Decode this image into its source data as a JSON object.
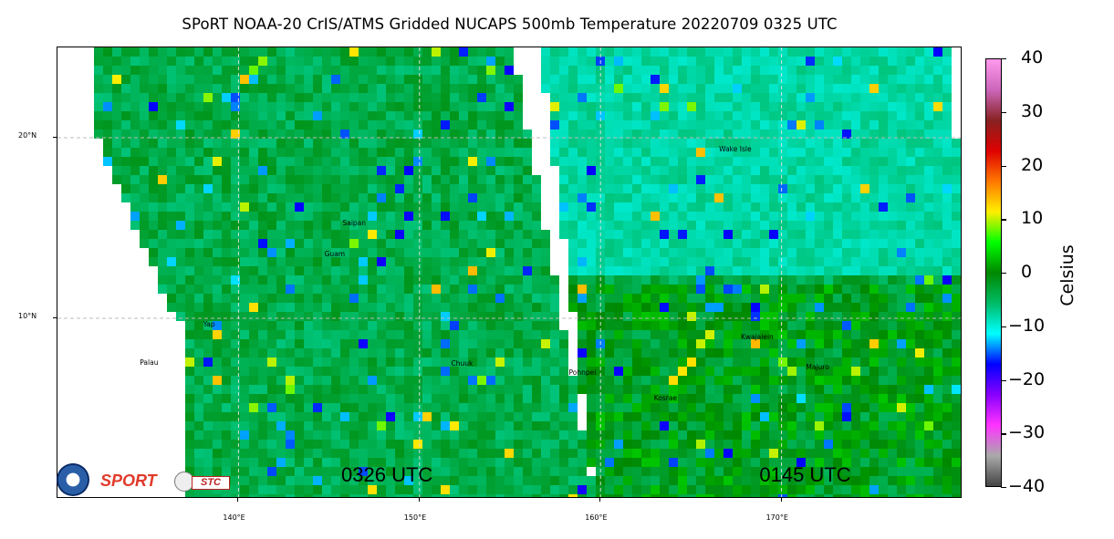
{
  "title": "SPoRT NOAA-20 CrIS/ATMS Gridded NUCAPS 500mb Temperature 20220709 0325 UTC",
  "map": {
    "lon_min": 130,
    "lon_max": 180,
    "lat_min": 0,
    "lat_max": 25,
    "lat_lines": [
      {
        "lat": 10,
        "label": "10°N"
      },
      {
        "lat": 20,
        "label": "20°N"
      }
    ],
    "lon_lines": [
      {
        "lon": 140,
        "label": "140°E"
      },
      {
        "lon": 150,
        "label": "150°E"
      },
      {
        "lon": 160,
        "label": "160°E"
      },
      {
        "lon": 170,
        "label": "170°E"
      }
    ],
    "pass_labels": [
      {
        "text": "0326 UTC",
        "lon": 148.4,
        "lat": 1.1
      },
      {
        "text": "0145 UTC",
        "lon": 171.5,
        "lat": 1.1
      }
    ],
    "places": [
      {
        "name": "Wake Isle",
        "lon": 166.6,
        "lat": 19.3
      },
      {
        "name": "Saipan",
        "lon": 145.8,
        "lat": 15.2
      },
      {
        "name": "Guam",
        "lon": 144.8,
        "lat": 13.5
      },
      {
        "name": "Yap",
        "lon": 138.1,
        "lat": 9.6
      },
      {
        "name": "Palau",
        "lon": 134.6,
        "lat": 7.5
      },
      {
        "name": "Chuuk",
        "lon": 151.8,
        "lat": 7.4
      },
      {
        "name": "Pohnpei",
        "lon": 158.3,
        "lat": 6.9
      },
      {
        "name": "Kwajalein",
        "lon": 167.8,
        "lat": 8.9
      },
      {
        "name": "Majuro",
        "lon": 171.4,
        "lat": 7.2
      },
      {
        "name": "Kosrae",
        "lon": 163.0,
        "lat": 5.5
      }
    ]
  },
  "colorbar": {
    "title": "Celsius",
    "min": -40,
    "max": 40,
    "ticks": [
      "40",
      "30",
      "20",
      "10",
      "0",
      "−10",
      "−20",
      "−30",
      "−40"
    ],
    "stops": [
      "#ff99ee",
      "#cc66bb",
      "#882222",
      "#dd0000",
      "#ff7700",
      "#ffee00",
      "#00ff00",
      "#008800",
      "#00bb66",
      "#00ffff",
      "#0000ff",
      "#8800ff",
      "#ff33ff",
      "#aaaaaa",
      "#444444"
    ]
  },
  "logos": {
    "sport": "SPORT",
    "stc": "STC"
  }
}
